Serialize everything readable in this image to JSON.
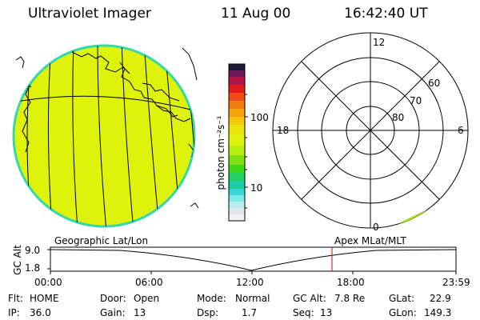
{
  "header": {
    "instrument": "Ultraviolet Imager",
    "date": "11 Aug 00",
    "time": "16:42:40 UT"
  },
  "colorbar": {
    "unit_label": "photon cm⁻²s⁻¹",
    "tick_100": "100",
    "tick_10": "10"
  },
  "polar_plot": {
    "mlt_12": "12",
    "mlt_18": "18",
    "mlt_6": "6",
    "mlt_0": "0",
    "lat_60": "60",
    "lat_70": "70",
    "lat_80": "80"
  },
  "timeline": {
    "left_label": "Geographic Lat/Lon",
    "right_label": "Apex MLat/MLT",
    "axis_label": "GC Alt",
    "y_top": "9.0",
    "y_bottom": "1.8",
    "t0": "00:00",
    "t1": "06:00",
    "t2": "12:00",
    "t3": "18:00",
    "t4": "23:59"
  },
  "status": {
    "flt_label": "Flt:",
    "flt_value": "HOME",
    "ip_label": "IP:",
    "ip_value": "36.0",
    "door_label": "Door:",
    "door_value": "Open",
    "gain_label": "Gain:",
    "gain_value": "13",
    "mode_label": "Mode:",
    "mode_value": "Normal",
    "dsp_label": "Dsp:",
    "dsp_value": "1.7",
    "gcalt_label": "GC Alt:",
    "gcalt_value": "7.8 Re",
    "seq_label": "Seq:",
    "seq_value": "13",
    "glat_label": "GLat:",
    "glat_value": "22.9",
    "glon_label": "GLon:",
    "glon_value": "149.3"
  },
  "colors": {
    "earth_fill": "#dff20a",
    "earth_edge": "#36d8a8",
    "marker": "#d0021b"
  }
}
